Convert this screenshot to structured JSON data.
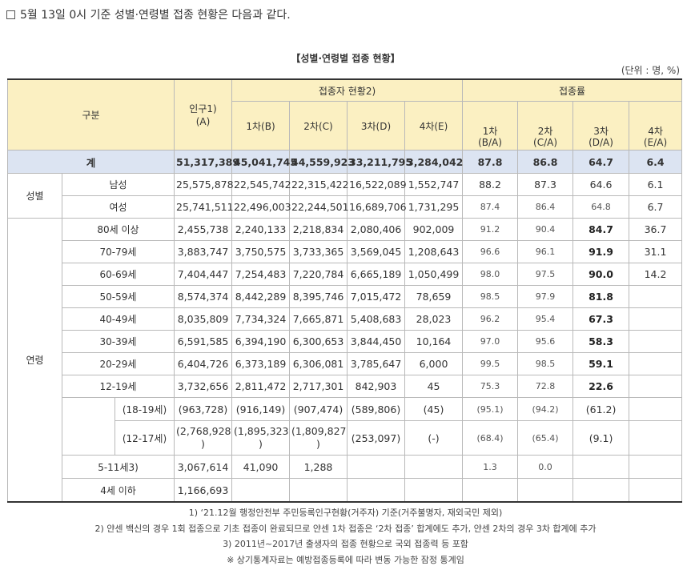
{
  "intro": "5월 13일 0시 기준 성별·연령별 접종 현황은 다음과 같다.",
  "title": "【성별·연령별 접종 현황】",
  "unit": "(단위 : 명, %)",
  "header": {
    "category": "구분",
    "population": "인구1)\n(A)",
    "vaccinated_group": "접종자 현황2)",
    "dose1": "1차(B)",
    "dose2": "2차(C)",
    "dose3": "3차(D)",
    "dose4": "4차(E)",
    "rate_group": "접종률",
    "rate1": "1차\n(B/A)",
    "rate2": "2차\n(C/A)",
    "rate3": "3차\n(D/A)",
    "rate4": "4차\n(E/A)"
  },
  "groups": {
    "sex": "성별",
    "age": "연령"
  },
  "total": {
    "label": "계",
    "pop": "51,317,389",
    "d1": "45,041,745",
    "d2": "44,559,923",
    "d3": "33,211,795",
    "d4": "3,284,042",
    "r1": "87.8",
    "r2": "86.8",
    "r3": "64.7",
    "r4": "6.4"
  },
  "sex_rows": [
    {
      "label": "남성",
      "pop": "25,575,878",
      "d1": "22,545,742",
      "d2": "22,315,422",
      "d3": "16,522,089",
      "d4": "1,552,747",
      "r1": "88.2",
      "r2": "87.3",
      "r3": "64.6",
      "r4": "6.1"
    },
    {
      "label": "여성",
      "pop": "25,741,511",
      "d1": "22,496,003",
      "d2": "22,244,501",
      "d3": "16,689,706",
      "d4": "1,731,295",
      "r1": "87.4",
      "r2": "86.4",
      "r3": "64.8",
      "r4": "6.7"
    }
  ],
  "age_rows": [
    {
      "label": "80세 이상",
      "pop": "2,455,738",
      "d1": "2,240,133",
      "d2": "2,218,834",
      "d3": "2,080,406",
      "d4": "902,009",
      "r1": "91.2",
      "r2": "90.4",
      "r3": "84.7",
      "r4": "36.7"
    },
    {
      "label": "70-79세",
      "pop": "3,883,747",
      "d1": "3,750,575",
      "d2": "3,733,365",
      "d3": "3,569,045",
      "d4": "1,208,643",
      "r1": "96.6",
      "r2": "96.1",
      "r3": "91.9",
      "r4": "31.1"
    },
    {
      "label": "60-69세",
      "pop": "7,404,447",
      "d1": "7,254,483",
      "d2": "7,220,784",
      "d3": "6,665,189",
      "d4": "1,050,499",
      "r1": "98.0",
      "r2": "97.5",
      "r3": "90.0",
      "r4": "14.2"
    },
    {
      "label": "50-59세",
      "pop": "8,574,374",
      "d1": "8,442,289",
      "d2": "8,395,746",
      "d3": "7,015,472",
      "d4": "78,659",
      "r1": "98.5",
      "r2": "97.9",
      "r3": "81.8",
      "r4": ""
    },
    {
      "label": "40-49세",
      "pop": "8,035,809",
      "d1": "7,734,324",
      "d2": "7,665,871",
      "d3": "5,408,683",
      "d4": "28,023",
      "r1": "96.2",
      "r2": "95.4",
      "r3": "67.3",
      "r4": ""
    },
    {
      "label": "30-39세",
      "pop": "6,591,585",
      "d1": "6,394,190",
      "d2": "6,300,653",
      "d3": "3,844,450",
      "d4": "10,164",
      "r1": "97.0",
      "r2": "95.6",
      "r3": "58.3",
      "r4": ""
    },
    {
      "label": "20-29세",
      "pop": "6,404,726",
      "d1": "6,373,189",
      "d2": "6,306,081",
      "d3": "3,785,647",
      "d4": "6,000",
      "r1": "99.5",
      "r2": "98.5",
      "r3": "59.1",
      "r4": ""
    },
    {
      "label": "12-19세",
      "pop": "3,732,656",
      "d1": "2,811,472",
      "d2": "2,717,301",
      "d3": "842,903",
      "d4": "45",
      "r1": "75.3",
      "r2": "72.8",
      "r3": "22.6",
      "r4": ""
    }
  ],
  "sub_rows": [
    {
      "label": "(18-19세)",
      "pop": "(963,728)",
      "d1": "(916,149)",
      "d2": "(907,474)",
      "d3": "(589,806)",
      "d4": "(45)",
      "r1": "(95.1)",
      "r2": "(94.2)",
      "r3": "(61.2)",
      "r4": ""
    },
    {
      "label": "(12-17세)",
      "pop_a": "(2,768,928",
      "pop_b": ")",
      "d1_a": "(1,895,323",
      "d1_b": ")",
      "d2_a": "(1,809,827",
      "d2_b": ")",
      "d3": "(253,097)",
      "d4": "(-)",
      "r1": "(68.4)",
      "r2": "(65.4)",
      "r3": "(9.1)",
      "r4": ""
    }
  ],
  "child_rows": [
    {
      "label": "5-11세3)",
      "pop": "3,067,614",
      "d1": "41,090",
      "d2": "1,288",
      "d3": "",
      "d4": "",
      "r1": "1.3",
      "r2": "0.0",
      "r3": "",
      "r4": ""
    },
    {
      "label": "4세 이하",
      "pop": "1,166,693",
      "d1": "",
      "d2": "",
      "d3": "",
      "d4": "",
      "r1": "",
      "r2": "",
      "r3": "",
      "r4": ""
    }
  ],
  "notes": [
    "1) ‘21.12월 행정안전부 주민등록인구현황(거주자) 기준(거주불명자, 재외국민 제외)",
    "2) 얀센 백신의 경우 1회 접종으로 기초 접종이 완료되므로 얀센 1차 접종은 ‘2차 접종’ 합계에도 추가, 얀센 2차의 경우 3차 합계에 추가",
    "3) 2011년~2017년 출생자의 접종 현황으로 국외 접종력 등 포함",
    "※ 상기통계자료는 예방접종등록에 따라 변동 가능한 잠정 통계임"
  ]
}
